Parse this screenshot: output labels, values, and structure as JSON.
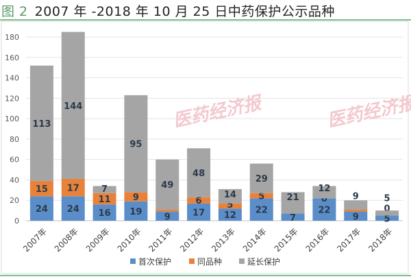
{
  "title": {
    "figure": "图 2",
    "text": "2007 年 -2018 年 10 月 25 日中药保护公示品种"
  },
  "watermark": "医药经济报",
  "chart_data": {
    "type": "bar",
    "stacked": true,
    "title": "2007 年 -2018 年 10 月 25 日中药保护公示品种",
    "xlabel": "",
    "ylabel": "",
    "ylim": [
      0,
      180
    ],
    "yticks": [
      0,
      20,
      40,
      60,
      80,
      100,
      120,
      140,
      160,
      180
    ],
    "grid": true,
    "legend_position": "bottom",
    "categories": [
      "2007年",
      "2008年",
      "2009年",
      "2010年",
      "2011年",
      "2012年",
      "2013年",
      "2014年",
      "2015年",
      "2016年",
      "2017年",
      "2018年"
    ],
    "series": [
      {
        "name": "首次保护",
        "color": "#5b8ec9",
        "values": [
          24,
          24,
          16,
          19,
          9,
          17,
          12,
          22,
          7,
          22,
          9,
          5
        ]
      },
      {
        "name": "同品种",
        "color": "#e8823a",
        "values": [
          15,
          17,
          11,
          9,
          2,
          6,
          5,
          5,
          0,
          0,
          2,
          0
        ]
      },
      {
        "name": "延长保护",
        "color": "#a5a5a5",
        "values": [
          113,
          144,
          7,
          95,
          49,
          48,
          14,
          29,
          21,
          12,
          9,
          5
        ]
      }
    ]
  }
}
